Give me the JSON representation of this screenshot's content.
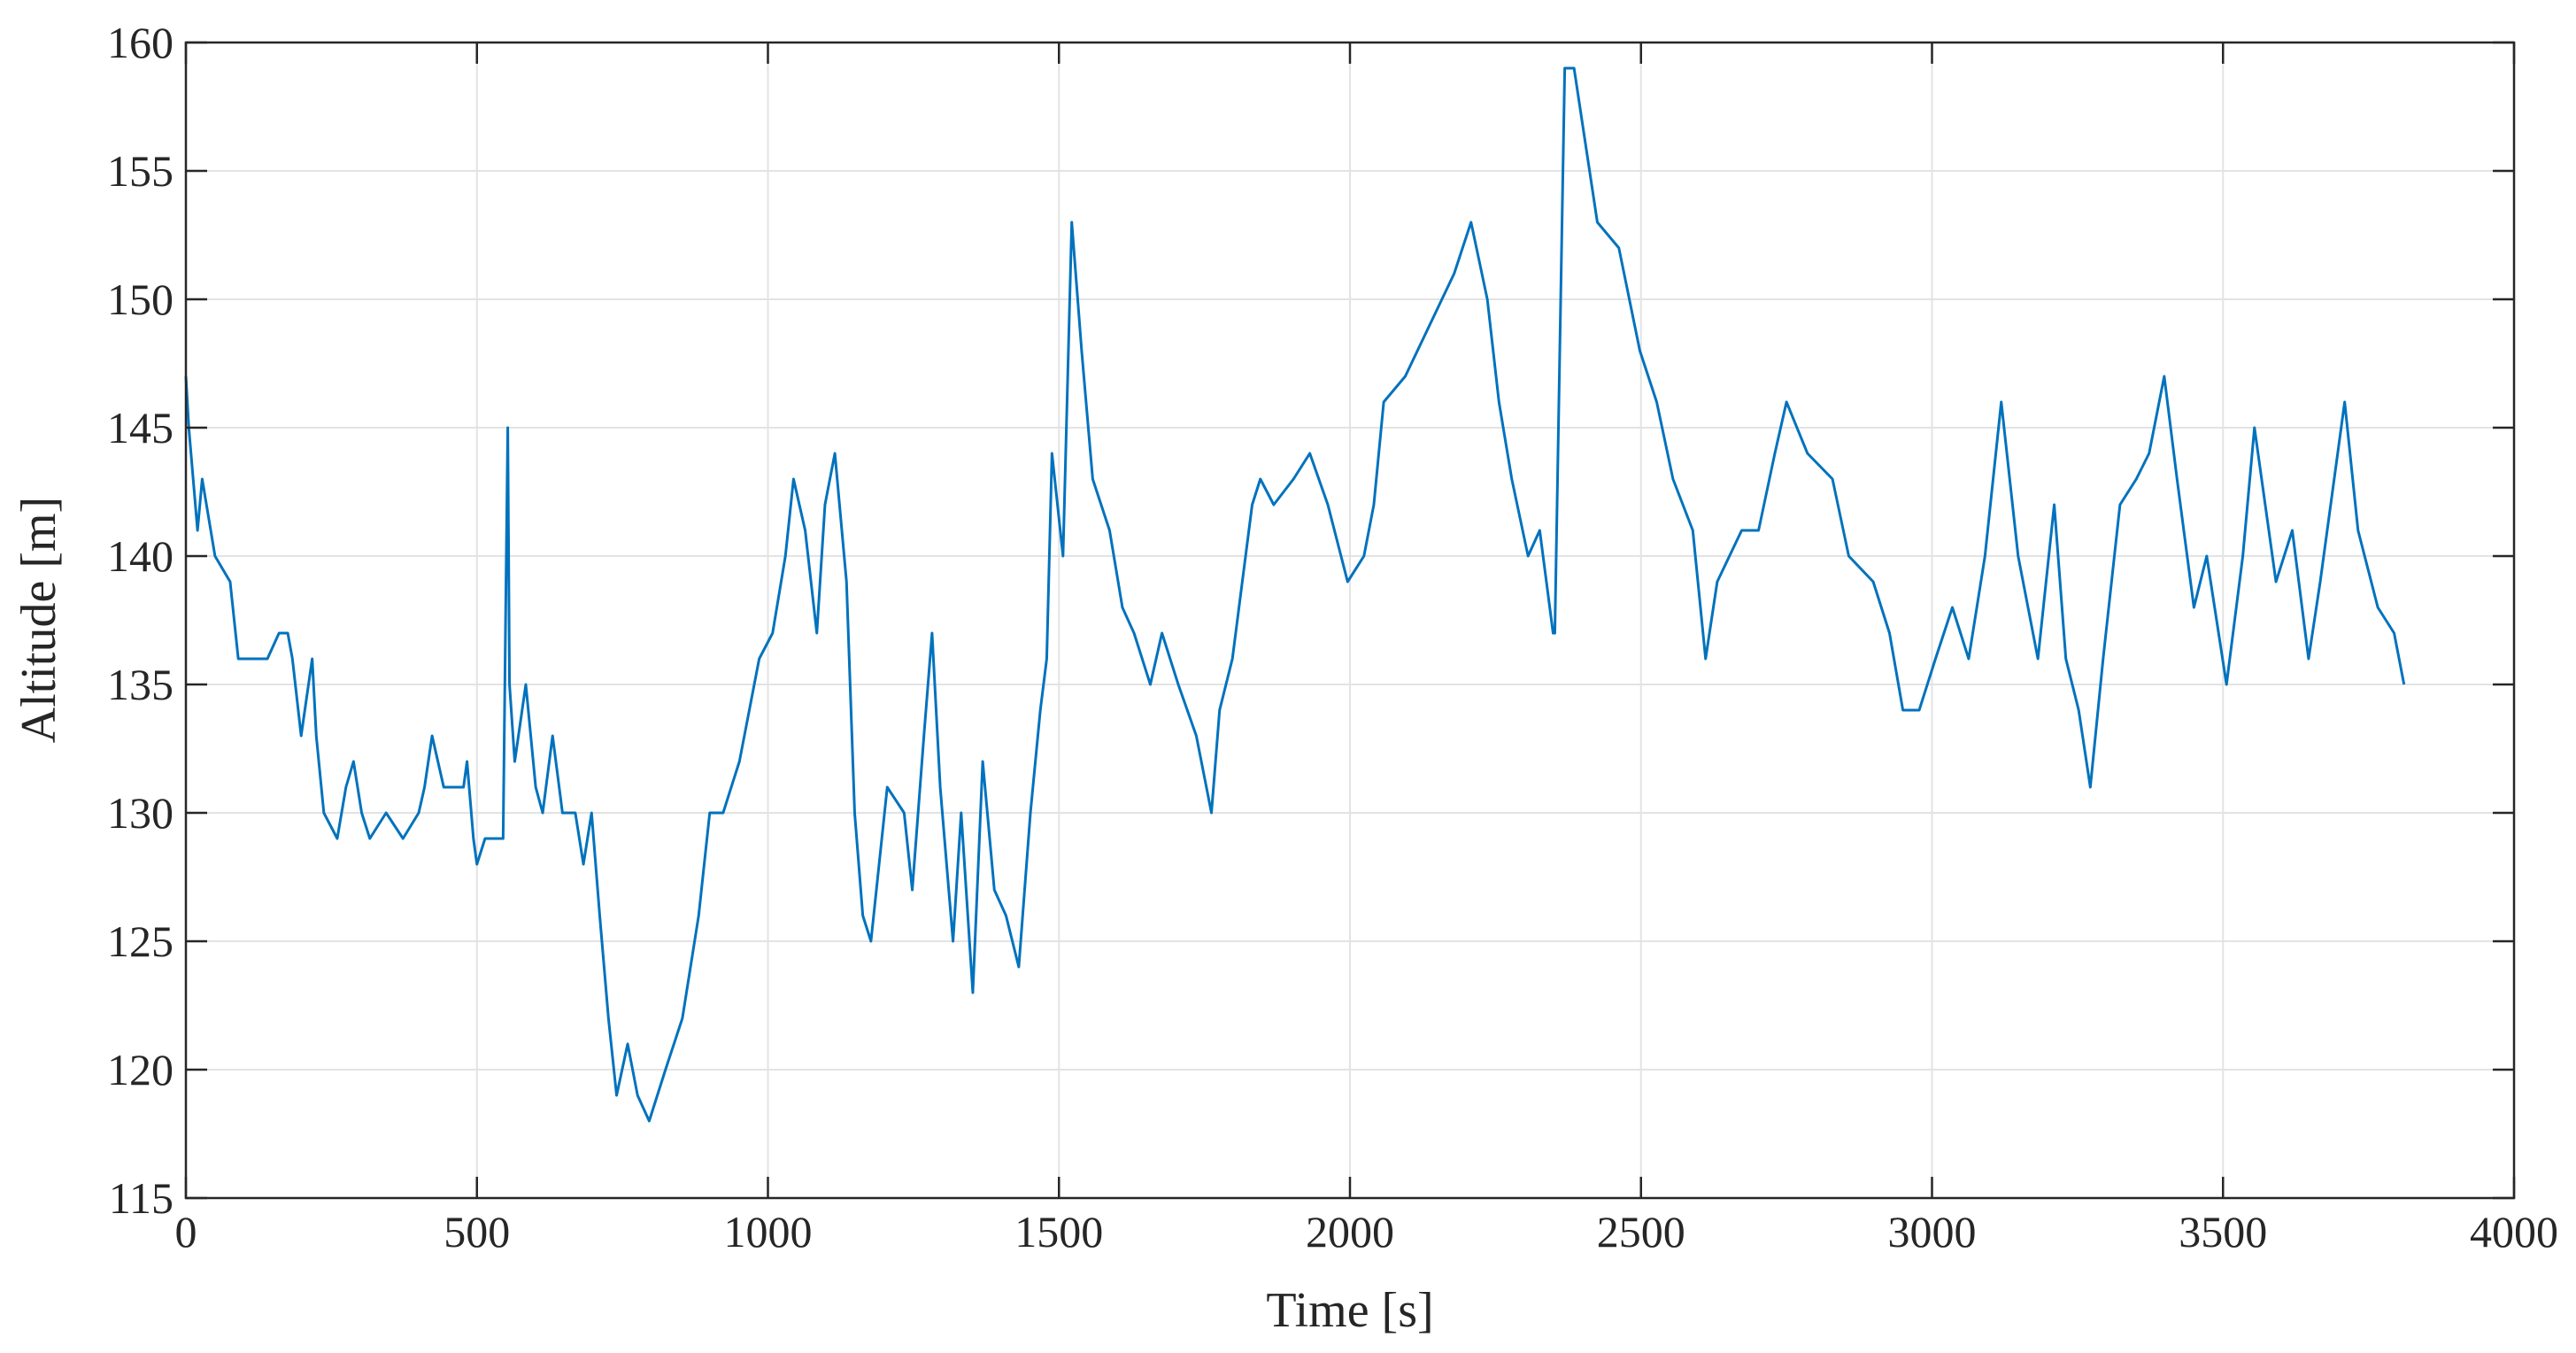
{
  "chart_data": {
    "type": "line",
    "xlabel": "Time [s]",
    "ylabel": "Altitude [m]",
    "xlim": [
      0,
      4000
    ],
    "ylim": [
      115,
      160
    ],
    "xticks": [
      0,
      500,
      1000,
      1500,
      2000,
      2500,
      3000,
      3500,
      4000
    ],
    "yticks": [
      115,
      120,
      125,
      130,
      135,
      140,
      145,
      150,
      155,
      160
    ],
    "grid": true,
    "series": [
      {
        "color": "#0072bd",
        "x": [
          0,
          5,
          20,
          28,
          50,
          76,
          90,
          140,
          160,
          175,
          183,
          198,
          217,
          224,
          237,
          260,
          275,
          288,
          302,
          316,
          344,
          373,
          400,
          410,
          423,
          443,
          477,
          483,
          494,
          500,
          514,
          545,
          553,
          556,
          565,
          584,
          601,
          613,
          630,
          647,
          669,
          683,
          697,
          711,
          726,
          740,
          759,
          776,
          796,
          824,
          853,
          881,
          900,
          923,
          951,
          985,
          1008,
          1030,
          1044,
          1064,
          1084,
          1098,
          1115,
          1135,
          1149,
          1163,
          1177,
          1191,
          1205,
          1234,
          1248,
          1268,
          1282,
          1296,
          1318,
          1332,
          1352,
          1369,
          1389,
          1409,
          1431,
          1451,
          1468,
          1479,
          1488,
          1507,
          1522,
          1539,
          1558,
          1587,
          1609,
          1629,
          1657,
          1677,
          1705,
          1736,
          1762,
          1776,
          1798,
          1832,
          1846,
          1869,
          1903,
          1931,
          1962,
          1996,
          2024,
          2041,
          2058,
          2095,
          2137,
          2179,
          2208,
          2236,
          2256,
          2278,
          2306,
          2326,
          2349,
          2352,
          2369,
          2385,
          2405,
          2425,
          2462,
          2498,
          2527,
          2555,
          2589,
          2611,
          2631,
          2673,
          2702,
          2730,
          2750,
          2786,
          2829,
          2857,
          2899,
          2927,
          2950,
          2978,
          3006,
          3035,
          3063,
          3091,
          3119,
          3148,
          3182,
          3210,
          3230,
          3252,
          3272,
          3294,
          3323,
          3351,
          3373,
          3399,
          3421,
          3450,
          3472,
          3506,
          3534,
          3554,
          3591,
          3619,
          3647,
          3667,
          3709,
          3732,
          3766,
          3794,
          3811
        ],
        "values": [
          147,
          145,
          141,
          143,
          140,
          139,
          136,
          136,
          137,
          137,
          136,
          133,
          136,
          133,
          130,
          129,
          131,
          132,
          130,
          129,
          130,
          129,
          130,
          131,
          133,
          131,
          131,
          132,
          129,
          128,
          129,
          129,
          145,
          135,
          132,
          135,
          131,
          130,
          133,
          130,
          130,
          128,
          130,
          126,
          122,
          119,
          121,
          119,
          118,
          120,
          122,
          126,
          130,
          130,
          132,
          136,
          137,
          140,
          143,
          141,
          137,
          142,
          144,
          139,
          130,
          126,
          125,
          128,
          131,
          130,
          127,
          133,
          137,
          131,
          125,
          130,
          123,
          132,
          127,
          126,
          124,
          130,
          134,
          136,
          144,
          140,
          153,
          148,
          143,
          141,
          138,
          137,
          135,
          137,
          135,
          133,
          130,
          134,
          136,
          142,
          143,
          142,
          143,
          144,
          142,
          139,
          140,
          142,
          146,
          147,
          149,
          151,
          153,
          150,
          146,
          143,
          140,
          141,
          137,
          137,
          159,
          159,
          156,
          153,
          152,
          148,
          146,
          143,
          141,
          136,
          139,
          141,
          141,
          144,
          146,
          144,
          143,
          140,
          139,
          137,
          134,
          134,
          136,
          138,
          136,
          140,
          146,
          140,
          136,
          142,
          136,
          134,
          131,
          136,
          142,
          143,
          144,
          147,
          143,
          138,
          140,
          135,
          140,
          145,
          139,
          141,
          136,
          139,
          146,
          141,
          138,
          137,
          135
        ]
      }
    ]
  }
}
